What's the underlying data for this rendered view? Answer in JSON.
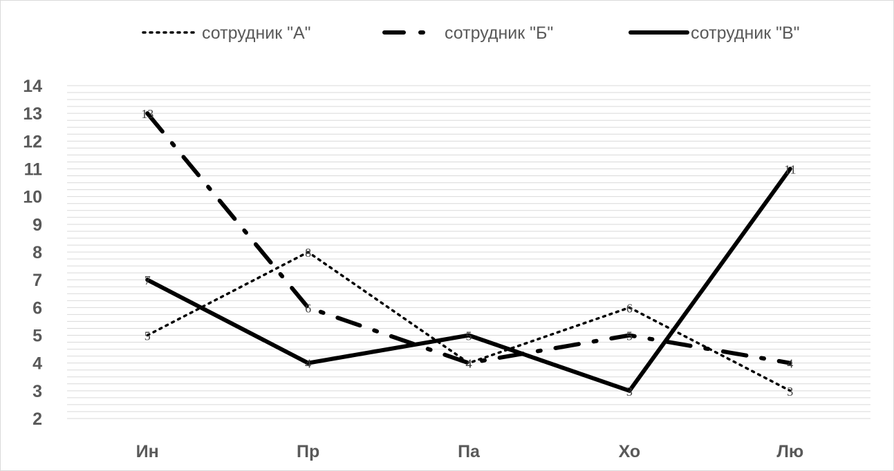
{
  "chart_data": {
    "type": "line",
    "categories": [
      "Ин",
      "Пр",
      "Па",
      "Хо",
      "Лю"
    ],
    "series": [
      {
        "name": "сотрудник \"А\"",
        "values": [
          5,
          8,
          4,
          6,
          3
        ],
        "style": "dotted",
        "color": "#000000"
      },
      {
        "name": "сотрудник  \"Б\"",
        "values": [
          13,
          6,
          4,
          5,
          4
        ],
        "style": "dash-dot",
        "color": "#000000"
      },
      {
        "name": "сотрудник \"В\"",
        "values": [
          7,
          4,
          5,
          3,
          11
        ],
        "style": "solid",
        "color": "#000000"
      }
    ],
    "ylim": [
      2,
      14
    ],
    "yticks": [
      "2",
      "3",
      "4",
      "5",
      "6",
      "7",
      "8",
      "9",
      "10",
      "11",
      "12",
      "13",
      "14"
    ],
    "data_labels": true,
    "grid": true,
    "legend": "top",
    "gridline_color": "#d9d9d9",
    "axis_text_color": "#595959"
  }
}
